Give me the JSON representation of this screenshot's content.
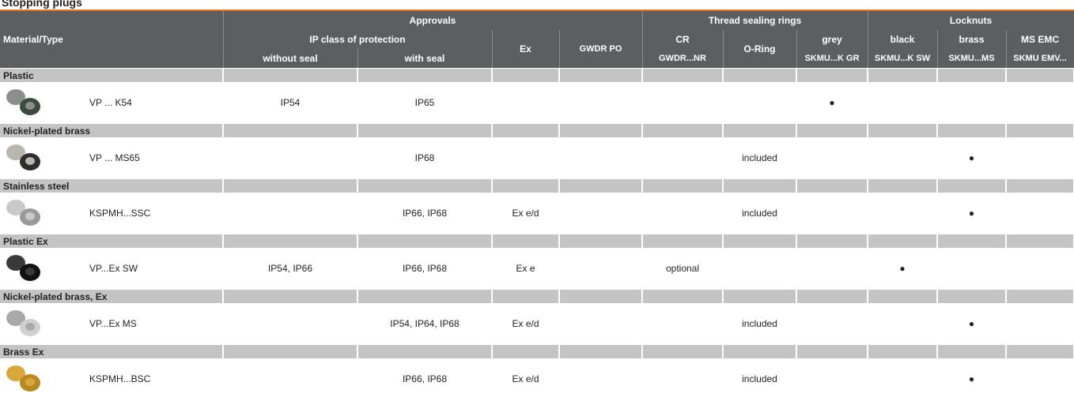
{
  "title": "Stopping plugs",
  "header": {
    "material_type": "Material/Type",
    "approvals": "Approvals",
    "thread_sealing_rings": "Thread sealing rings",
    "locknuts": "Locknuts",
    "ip_class": "IP class of protection",
    "ex": "Ex",
    "gwdr_po": "GWDR PO",
    "cr": "CR",
    "o_ring": "O-Ring",
    "grey": "grey",
    "black": "black",
    "brass": "brass",
    "ms_emc": "MS EMC",
    "without_seal": "without seal",
    "with_seal": "with seal",
    "gwdr_nr": "GWDR...NR",
    "skmu_k_gr": "SKMU...K GR",
    "skmu_k_sw": "SKMU...K SW",
    "skmu_ms": "SKMU...MS",
    "skmu_emv": "SKMU EMV..."
  },
  "rows": [
    {
      "section": "Plastic",
      "type": "VP ... K54",
      "values": {
        "without_seal": "IP54",
        "with_seal": "IP65",
        "grey": "●"
      }
    },
    {
      "section": "Nickel-plated brass",
      "type": "VP ... MS65",
      "values": {
        "with_seal": "IP68",
        "o_ring": "included",
        "brass": "●"
      }
    },
    {
      "section": "Stainless steel",
      "type": "KSPMH...SSC",
      "values": {
        "with_seal": "IP66, IP68",
        "ex": "Ex e/d",
        "o_ring": "included",
        "brass": "●"
      }
    },
    {
      "section": "Plastic Ex",
      "type": "VP...Ex SW",
      "values": {
        "without_seal": "IP54, IP66",
        "with_seal": "IP66, IP68",
        "ex": "Ex e",
        "cr": "optional",
        "black": "●"
      }
    },
    {
      "section": "Nickel-plated brass, Ex",
      "type": "VP...Ex MS",
      "values": {
        "with_seal": "IP54, IP64, IP68",
        "ex": "Ex e/d",
        "o_ring": "included",
        "brass": "●"
      }
    },
    {
      "section": "Brass Ex",
      "type": "KSPMH...BSC",
      "values": {
        "with_seal": "IP66, IP68",
        "ex": "Ex e/d",
        "o_ring": "included",
        "brass": "●"
      }
    }
  ]
}
